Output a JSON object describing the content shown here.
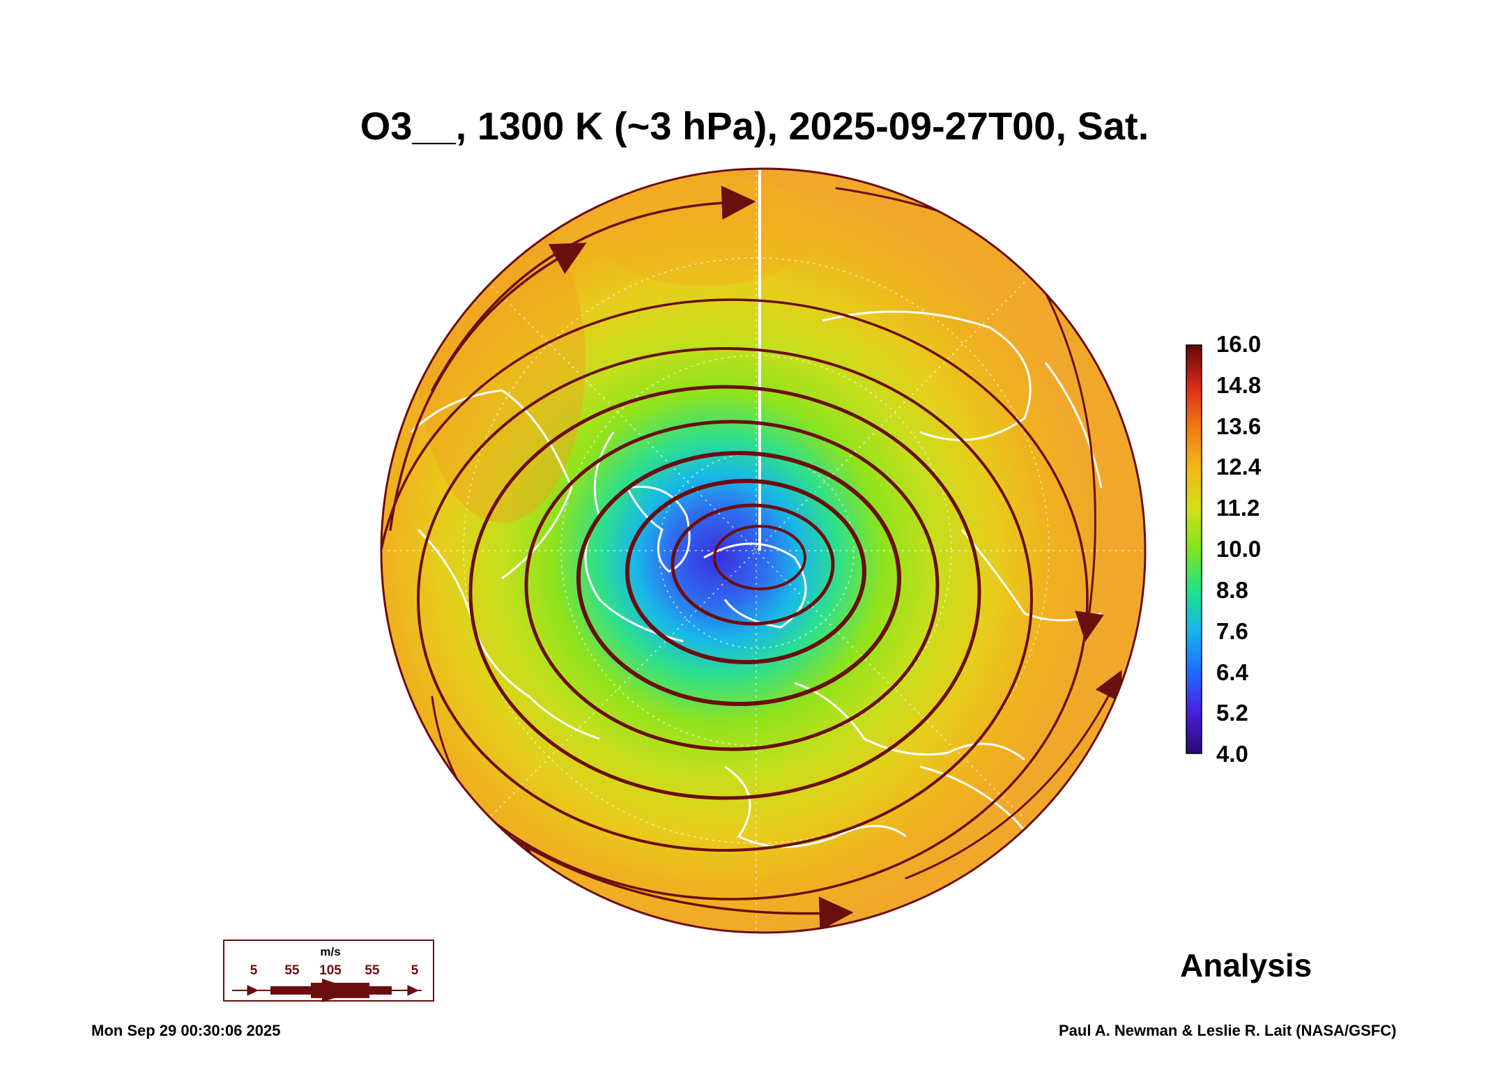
{
  "title": "O3__, 1300 K (~3 hPa), 2025-09-27T00, Sat.",
  "colorbar": {
    "labels": [
      "16.0",
      "14.8",
      "13.6",
      "12.4",
      "11.2",
      "10.0",
      "8.8",
      "7.6",
      "6.4",
      "5.2",
      "4.0"
    ],
    "min": 4.0,
    "max": 16.0,
    "colors": [
      "#3b0a6e",
      "#3a3cd6",
      "#1e88ff",
      "#19c6e6",
      "#1ee38a",
      "#7ee51e",
      "#c8e01a",
      "#f0c81a",
      "#f29a14",
      "#e8501a",
      "#c81e14",
      "#6b0a0a"
    ]
  },
  "legend": {
    "unit": "m/s",
    "speeds": [
      "5",
      "55",
      "105",
      "55",
      "5"
    ]
  },
  "label_analysis": "Analysis",
  "timestamp": "Mon Sep 29 00:30:06 2025",
  "credit": "Paul A. Newman & Leslie R. Lait (NASA/GSFC)",
  "colors": {
    "streamline": "#6b0e0e",
    "coastline": "#ffffff"
  }
}
